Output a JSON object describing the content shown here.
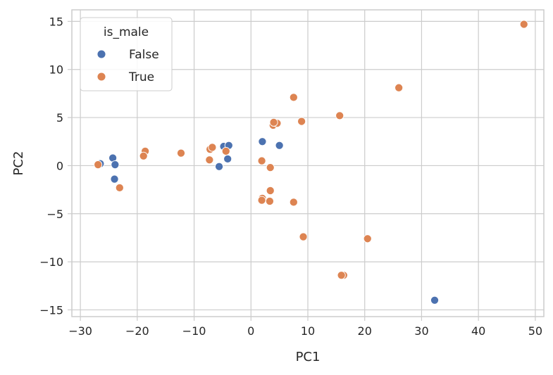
{
  "chart_data": {
    "type": "scatter",
    "xlabel": "PC1",
    "ylabel": "PC2",
    "xlim": [
      -31.5,
      51.5
    ],
    "ylim": [
      -15.7,
      16.2
    ],
    "xticks": [
      -30,
      -20,
      -10,
      0,
      10,
      20,
      30,
      40,
      50
    ],
    "yticks": [
      -15,
      -10,
      -5,
      0,
      5,
      10,
      15
    ],
    "grid": true,
    "legend": {
      "title": "is_male",
      "placement": "top-left"
    },
    "series": [
      {
        "name": "False",
        "color": "#4c72b0",
        "points": [
          [
            -26.5,
            0.2
          ],
          [
            -24.3,
            0.8
          ],
          [
            -23.9,
            0.1
          ],
          [
            -24.0,
            -1.4
          ],
          [
            -4.8,
            2.0
          ],
          [
            -3.9,
            2.1
          ],
          [
            -4.1,
            0.7
          ],
          [
            -5.6,
            -0.1
          ],
          [
            2.0,
            2.5
          ],
          [
            5.0,
            2.1
          ],
          [
            32.3,
            -14.0
          ]
        ]
      },
      {
        "name": "True",
        "color": "#dd8452",
        "points": [
          [
            -26.9,
            0.1
          ],
          [
            -23.1,
            -2.3
          ],
          [
            -18.6,
            1.5
          ],
          [
            -18.9,
            1.0
          ],
          [
            -12.3,
            1.3
          ],
          [
            -7.2,
            1.7
          ],
          [
            -6.8,
            1.9
          ],
          [
            -7.3,
            0.6
          ],
          [
            -4.4,
            1.5
          ],
          [
            3.9,
            4.2
          ],
          [
            4.6,
            4.4
          ],
          [
            4.0,
            4.5
          ],
          [
            7.5,
            7.1
          ],
          [
            8.9,
            4.6
          ],
          [
            15.6,
            5.2
          ],
          [
            26.0,
            8.1
          ],
          [
            48.0,
            14.7
          ],
          [
            1.9,
            0.5
          ],
          [
            3.4,
            -0.2
          ],
          [
            3.4,
            -2.6
          ],
          [
            2.0,
            -3.4
          ],
          [
            1.9,
            -3.6
          ],
          [
            3.3,
            -3.7
          ],
          [
            7.5,
            -3.8
          ],
          [
            9.2,
            -7.4
          ],
          [
            20.5,
            -7.6
          ],
          [
            16.3,
            -11.4
          ],
          [
            15.9,
            -11.4
          ]
        ]
      }
    ]
  }
}
